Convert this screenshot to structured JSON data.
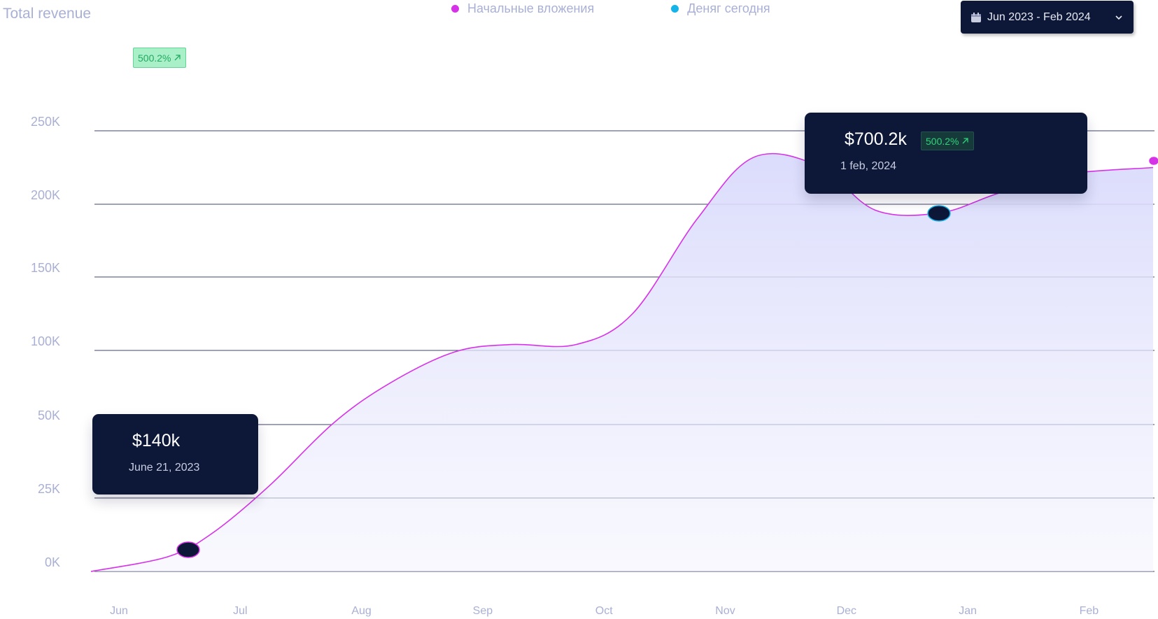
{
  "chart_data": {
    "type": "area",
    "title": "Total revenue",
    "x": [
      "Jun",
      "Jul",
      "Aug",
      "Sep",
      "Oct",
      "Nov",
      "Dec",
      "Jan",
      "Feb"
    ],
    "y_ticks": [
      "0K",
      "25K",
      "50K",
      "100K",
      "150K",
      "200K",
      "250K"
    ],
    "grid": true,
    "legend_position": "top-center",
    "series": [
      {
        "name": "Начальные вложения",
        "color": "#d633e8",
        "points": [
          {
            "x": "Jun 1",
            "y": 0
          },
          {
            "x": "Jun 20",
            "y": 5
          },
          {
            "x": "Jul 1",
            "y": 13
          },
          {
            "x": "Jul 15",
            "y": 29
          },
          {
            "x": "Aug 1",
            "y": 51
          },
          {
            "x": "Aug 15",
            "y": 78
          },
          {
            "x": "Sep 1",
            "y": 99
          },
          {
            "x": "Sep 15",
            "y": 104
          },
          {
            "x": "Oct 1",
            "y": 104
          },
          {
            "x": "Oct 15",
            "y": 125
          },
          {
            "x": "Nov 1",
            "y": 190
          },
          {
            "x": "Nov 15",
            "y": 232
          },
          {
            "x": "Dec 1",
            "y": 226
          },
          {
            "x": "Dec 15",
            "y": 196
          },
          {
            "x": "Jan 1",
            "y": 194
          },
          {
            "x": "Jan 15",
            "y": 207
          },
          {
            "x": "Feb 1",
            "y": 220
          },
          {
            "x": "Feb 20",
            "y": 225
          }
        ]
      },
      {
        "name": "Деняг сегодня",
        "color": "#14b3ea",
        "points": []
      }
    ],
    "annotations": [
      {
        "value": "$140k",
        "date": "June 21, 2023"
      },
      {
        "value": "$700.2k",
        "date": "1 feb, 2024",
        "change": "500.2%"
      }
    ],
    "change_badge": "500.2%"
  },
  "controls": {
    "date_range": "Jun 2023 - Feb 2024"
  },
  "icons": {
    "calendar": "calendar-icon",
    "chevron": "chevron-down-icon",
    "arrow": "arrow-up-right-icon"
  }
}
